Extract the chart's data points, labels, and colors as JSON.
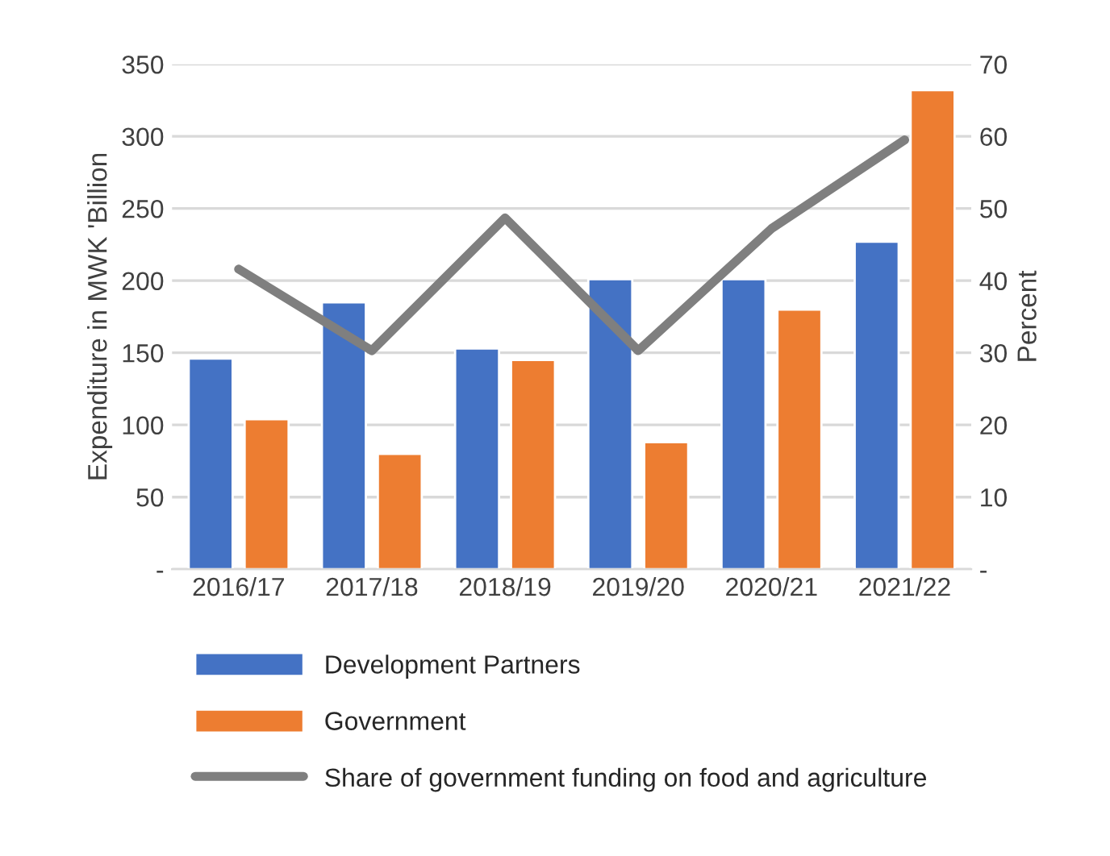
{
  "chart_data": {
    "type": "bar",
    "ylabel": "Expenditure in MWK 'Billion",
    "y2label": "Percent",
    "categories": [
      "2016/17",
      "2017/18",
      "2018/19",
      "2019/20",
      "2020/21",
      "2021/22"
    ],
    "series": [
      {
        "name": "Development Partners",
        "color": "#4472c4",
        "values": [
          146,
          185,
          153,
          201,
          201,
          227
        ]
      },
      {
        "name": "Government",
        "color": "#ed7d31",
        "values": [
          104,
          80,
          145,
          88,
          180,
          332
        ]
      },
      {
        "name": "Share of government funding on food and agriculture",
        "type": "line",
        "axis": "y2",
        "color": "#7f7f7f",
        "values": [
          41.6,
          30.3,
          48.7,
          30.3,
          47.2,
          59.5
        ]
      }
    ],
    "ylim": [
      0,
      350
    ],
    "yticks": [
      {
        "value": 0,
        "label": "-"
      },
      50,
      100,
      150,
      200,
      250,
      300,
      350
    ],
    "y2lim": [
      0,
      70
    ],
    "y2ticks": [
      {
        "value": 0,
        "label": "-"
      },
      10,
      20,
      30,
      40,
      50,
      60,
      70
    ],
    "grid": "y",
    "legend": "bottom",
    "marker": "none",
    "line_style": "solid"
  }
}
